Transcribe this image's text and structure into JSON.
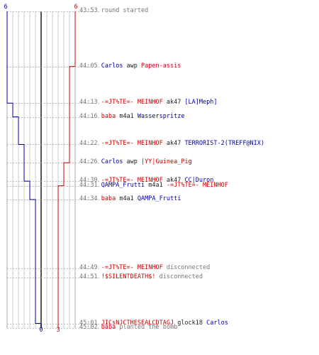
{
  "chart_data": {
    "type": "line",
    "x_unit": "kills",
    "team_blue": {
      "color": "#0000aa",
      "start_label": "6",
      "end_label": "0",
      "steps": [
        {
          "time": "43:53",
          "value": 6
        },
        {
          "time": "44:13",
          "value": 5
        },
        {
          "time": "44:16",
          "value": 4
        },
        {
          "time": "44:22",
          "value": 3
        },
        {
          "time": "44:30",
          "value": 2
        },
        {
          "time": "44:34",
          "value": 1
        },
        {
          "time": "45:01",
          "value": 0
        }
      ]
    },
    "team_red": {
      "color": "#cc0000",
      "start_label": "6",
      "end_label": "3",
      "steps": [
        {
          "time": "43:53",
          "value": 6
        },
        {
          "time": "44:05",
          "value": 5
        },
        {
          "time": "44:26",
          "value": 4
        },
        {
          "time": "44:31",
          "value": 3
        }
      ]
    },
    "x_range": [
      0,
      6
    ],
    "grid": true
  },
  "events": [
    {
      "time": "43:53",
      "parts": [
        {
          "t": "round started",
          "c": "grey"
        }
      ]
    },
    {
      "time": "44:05",
      "parts": [
        {
          "t": "Carlos",
          "c": "blue"
        },
        {
          "t": " awp ",
          "c": "blk"
        },
        {
          "t": "Papen-assis",
          "c": "red"
        }
      ]
    },
    {
      "time": "44:13",
      "parts": [
        {
          "t": "-=JT%TE=- MEINHOF",
          "c": "red"
        },
        {
          "t": " ak47 ",
          "c": "blk"
        },
        {
          "t": "[LA]Meph]",
          "c": "blue"
        }
      ]
    },
    {
      "time": "44:16",
      "parts": [
        {
          "t": "baba",
          "c": "red"
        },
        {
          "t": " m4a1 ",
          "c": "blk"
        },
        {
          "t": "Wasserspritze",
          "c": "blue"
        }
      ]
    },
    {
      "time": "44:22",
      "parts": [
        {
          "t": "-=JT%TE=- MEINHOF",
          "c": "red"
        },
        {
          "t": " ak47 ",
          "c": "blk"
        },
        {
          "t": "TERRORIST-2(TREFF@NIX)",
          "c": "blue"
        }
      ]
    },
    {
      "time": "44:26",
      "parts": [
        {
          "t": "Carlos",
          "c": "blue"
        },
        {
          "t": " awp ",
          "c": "blk"
        },
        {
          "t": "|YY|Guinea_Pig",
          "c": "red"
        }
      ]
    },
    {
      "time": "44:30",
      "parts": [
        {
          "t": "-=JT%TE=- MEINHOF",
          "c": "red"
        },
        {
          "t": " ak47 ",
          "c": "blk"
        },
        {
          "t": "CC|Duron",
          "c": "blue"
        }
      ]
    },
    {
      "time": "44:31",
      "parts": [
        {
          "t": "QAMPA_Frutti",
          "c": "blue"
        },
        {
          "t": " m4a1 ",
          "c": "blk"
        },
        {
          "t": "-=JT%TE=- MEINHOF",
          "c": "red"
        }
      ]
    },
    {
      "time": "44:34",
      "parts": [
        {
          "t": "baba",
          "c": "red"
        },
        {
          "t": " m4a1 ",
          "c": "blk"
        },
        {
          "t": "QAMPA_Frutti",
          "c": "blue"
        }
      ]
    },
    {
      "time": "44:49",
      "parts": [
        {
          "t": "-=JT%TE=- MEINHOF",
          "c": "red"
        },
        {
          "t": " disconnected",
          "c": "grey"
        }
      ]
    },
    {
      "time": "44:51",
      "parts": [
        {
          "t": "!$SILENTDEATH$!",
          "c": "red"
        },
        {
          "t": " disconnected",
          "c": "grey"
        }
      ]
    },
    {
      "time": "45:01",
      "parts": [
        {
          "t": "JICsNJCTHESEALCDTAGJ",
          "c": "red"
        },
        {
          "t": " glock18 ",
          "c": "blk"
        },
        {
          "t": "Carlos",
          "c": "blue"
        }
      ]
    },
    {
      "time": "45:02",
      "parts": [
        {
          "t": "baba",
          "c": "red"
        },
        {
          "t": " planted the bomb",
          "c": "grey"
        }
      ]
    }
  ]
}
